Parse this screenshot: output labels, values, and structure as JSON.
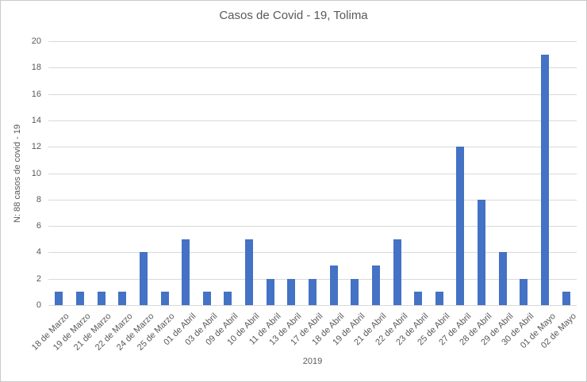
{
  "chart_data": {
    "type": "bar",
    "title": "Casos de Covid - 19, Tolima",
    "xlabel": "2019",
    "ylabel": "N: 88 casos de covid - 19",
    "categories": [
      "18 de Marzo",
      "19 de Marzo",
      "21 de Marzo",
      "22 de Marzo",
      "24 de Marzo",
      "25 de Marzo",
      "01 de Abril",
      "03 de Abril",
      "09 de Abril",
      "10 de Abril",
      "11 de Abril",
      "13 de Abril",
      "17 de Abril",
      "18 de Abril",
      "19 de Abril",
      "21 de Abril",
      "22 de Abril",
      "23 de Abril",
      "25 de Abril",
      "27 de Abril",
      "28 de Abril",
      "29 de Abril",
      "30 de Abril",
      "01 de Mayo",
      "02 de Mayo"
    ],
    "values": [
      1,
      1,
      1,
      1,
      4,
      1,
      5,
      1,
      1,
      5,
      2,
      2,
      2,
      3,
      2,
      3,
      5,
      1,
      1,
      12,
      8,
      4,
      2,
      19,
      1
    ],
    "total_cases": 88,
    "ylim": [
      0,
      20
    ],
    "ytick_step": 2,
    "grid": true,
    "legend_position": "none",
    "colors": {
      "bar": "#4472C4",
      "gridline": "#D9D9D9",
      "text": "#595959",
      "background": "#FFFFFF",
      "border": "#C9C9C9"
    }
  }
}
